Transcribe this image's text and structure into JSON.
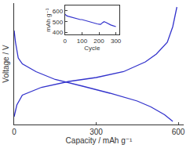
{
  "chart_data": [
    {
      "type": "line",
      "x_label": "Capacity / mAh g⁻¹",
      "y_label": "Voltage / V",
      "xlim": [
        0,
        620
      ],
      "xticks": [
        0,
        300,
        600
      ],
      "ylim": [
        0,
        3.1
      ],
      "tick_labels": "x",
      "grid": false,
      "series": [
        {
          "color": "#3333cc",
          "x": [
            0,
            5,
            15,
            30,
            80,
            150,
            250,
            350,
            450,
            500,
            550,
            580
          ],
          "values": [
            2.4,
            2.1,
            1.7,
            1.55,
            1.35,
            1.15,
            0.98,
            0.8,
            0.6,
            0.45,
            0.25,
            0.08
          ]
        },
        {
          "color": "#3333cc",
          "x": [
            0,
            10,
            30,
            100,
            200,
            300,
            400,
            480,
            520,
            560,
            580,
            595
          ],
          "values": [
            0.2,
            0.5,
            0.75,
            0.95,
            1.1,
            1.2,
            1.35,
            1.6,
            1.8,
            2.1,
            2.5,
            3.0
          ]
        }
      ]
    },
    {
      "type": "line",
      "x_label": "Cycle",
      "y_label": "mAh g⁻¹",
      "xlim": [
        0,
        320
      ],
      "xticks": [
        0,
        100,
        200,
        300
      ],
      "ylim": [
        380,
        650
      ],
      "yticks": [
        400,
        500,
        600
      ],
      "grid": false,
      "series": [
        {
          "color": "#3333cc",
          "x": [
            0,
            10,
            20,
            30,
            40,
            50,
            60,
            70,
            80,
            90,
            100,
            110,
            120,
            130,
            140,
            150,
            160,
            170,
            180,
            190,
            200,
            210,
            220,
            230,
            240,
            250,
            260,
            270,
            280,
            290,
            300
          ],
          "values": [
            570,
            555,
            550,
            545,
            540,
            535,
            530,
            530,
            525,
            520,
            520,
            515,
            512,
            510,
            505,
            500,
            495,
            490,
            485,
            480,
            478,
            475,
            490,
            500,
            495,
            485,
            475,
            470,
            465,
            460,
            455
          ]
        }
      ]
    }
  ]
}
